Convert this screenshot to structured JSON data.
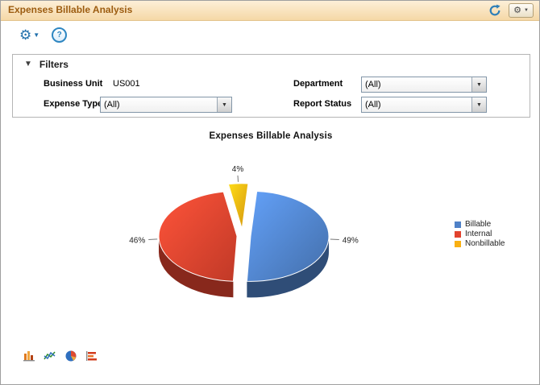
{
  "header": {
    "title": "Expenses Billable Analysis"
  },
  "icons": {
    "gear": "⚙",
    "caret": "▼",
    "help": "?",
    "collapse_triangle": "▼"
  },
  "filters": {
    "title": "Filters",
    "business_unit": {
      "label": "Business Unit",
      "value": "US001"
    },
    "department": {
      "label": "Department",
      "value": "(All)"
    },
    "expense_type": {
      "label": "Expense Type",
      "value": "(All)"
    },
    "report_status": {
      "label": "Report Status",
      "value": "(All)"
    }
  },
  "chart": {
    "title": "Expenses Billable Analysis"
  },
  "chart_data": {
    "type": "pie",
    "title": "Expenses Billable Analysis",
    "labels": [
      "Billable",
      "Internal",
      "Nonbillable"
    ],
    "values": [
      49,
      46,
      4
    ],
    "unit": "%",
    "colors": [
      "#4f81c7",
      "#e2432e",
      "#f9b012"
    ],
    "legend_position": "right",
    "style": "3d-exploded-pie"
  }
}
